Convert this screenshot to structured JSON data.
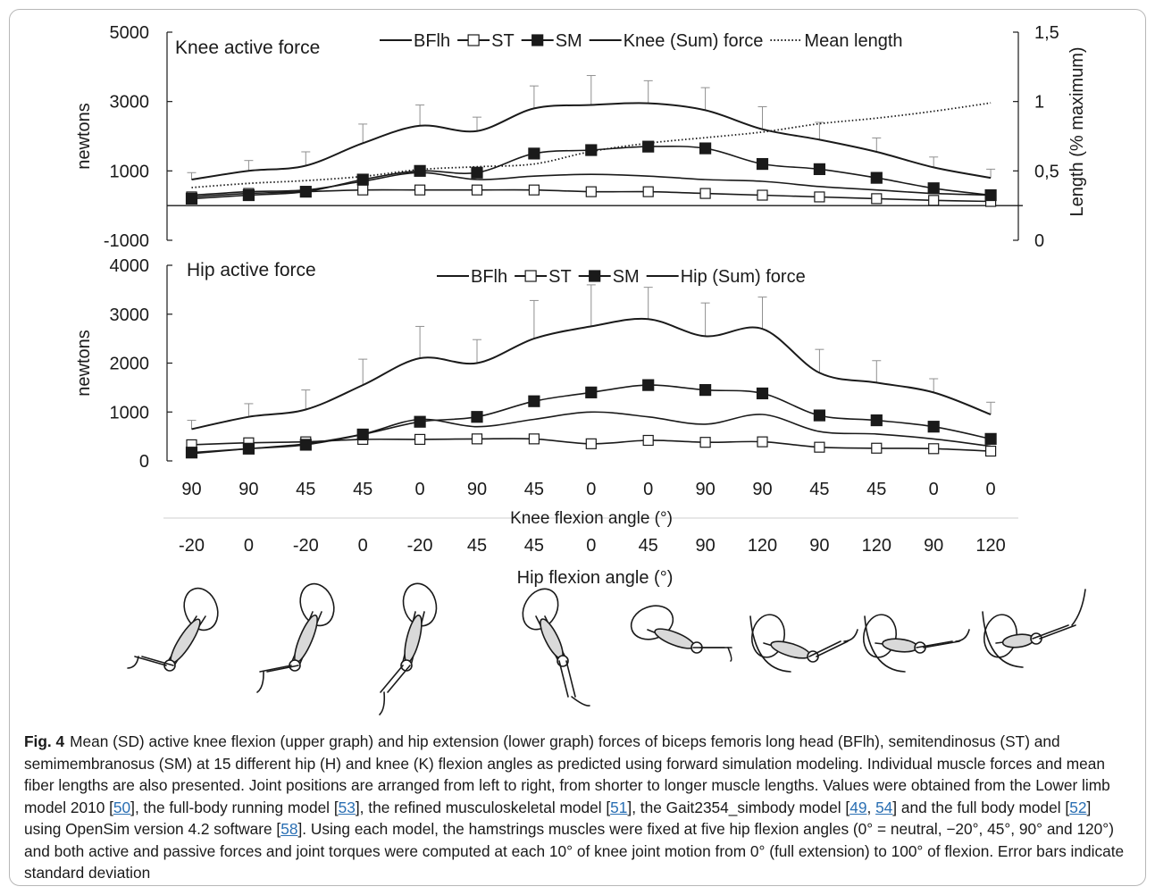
{
  "colors": {
    "line": "#1a1a1a",
    "errorbar": "#909090",
    "ref": "#2a6fb3",
    "frame": "#b7b7b7"
  },
  "x_axis": {
    "knee_angles": [
      "90",
      "90",
      "45",
      "45",
      "0",
      "90",
      "45",
      "0",
      "0",
      "90",
      "90",
      "45",
      "45",
      "0",
      "0"
    ],
    "hip_angles": [
      "-20",
      "0",
      "-20",
      "0",
      "-20",
      "45",
      "45",
      "0",
      "45",
      "90",
      "120",
      "90",
      "120",
      "90",
      "120"
    ],
    "knee_label": "Knee flexion angle (°)",
    "hip_label": "Hip flexion angle (°)"
  },
  "chart_data": [
    {
      "type": "line",
      "title": "Knee active force",
      "ylabel": "newtons",
      "ylim": [
        -1000,
        5000
      ],
      "yticks": [
        "5000",
        "3000",
        "1000",
        "-1000"
      ],
      "y2label": "Length (% maximum)",
      "y2lim": [
        0,
        1.5
      ],
      "y2ticks": [
        "1,5",
        "1",
        "0,5",
        "0"
      ],
      "legend": [
        "BFlh",
        "ST",
        "SM",
        "Knee (Sum) force",
        "Mean length"
      ],
      "series": [
        {
          "name": "BFlh",
          "marker": "none",
          "values": [
            300,
            400,
            450,
            700,
            950,
            750,
            850,
            900,
            850,
            750,
            700,
            550,
            450,
            350,
            300
          ]
        },
        {
          "name": "ST",
          "marker": "open-square",
          "values": [
            250,
            350,
            400,
            450,
            450,
            450,
            450,
            400,
            400,
            350,
            300,
            250,
            200,
            150,
            120
          ]
        },
        {
          "name": "SM",
          "marker": "filled-square",
          "values": [
            200,
            300,
            400,
            750,
            1000,
            950,
            1500,
            1600,
            1700,
            1650,
            1200,
            1050,
            800,
            500,
            300
          ]
        },
        {
          "name": "Knee (Sum) force",
          "marker": "none",
          "values": [
            750,
            1000,
            1150,
            1800,
            2300,
            2150,
            2800,
            2900,
            2950,
            2750,
            2200,
            1900,
            1550,
            1100,
            800
          ],
          "sd": [
            200,
            300,
            400,
            550,
            600,
            400,
            650,
            850,
            650,
            650,
            650,
            500,
            400,
            300,
            250
          ]
        },
        {
          "name": "Mean length",
          "marker": "none",
          "style": "dotted",
          "axis": "y2",
          "values": [
            0.38,
            0.41,
            0.43,
            0.46,
            0.51,
            0.53,
            0.55,
            0.64,
            0.7,
            0.74,
            0.78,
            0.84,
            0.88,
            0.93,
            0.99
          ]
        }
      ]
    },
    {
      "type": "line",
      "title": "Hip active force",
      "ylabel": "newtons",
      "ylim": [
        0,
        4000
      ],
      "yticks": [
        "4000",
        "3000",
        "2000",
        "1000",
        "0"
      ],
      "legend": [
        "BFlh",
        "ST",
        "SM",
        "Hip (Sum) force"
      ],
      "series": [
        {
          "name": "BFlh",
          "marker": "none",
          "values": [
            150,
            250,
            350,
            550,
            850,
            700,
            850,
            1000,
            900,
            750,
            950,
            600,
            550,
            450,
            300
          ]
        },
        {
          "name": "ST",
          "marker": "open-square",
          "values": [
            330,
            370,
            390,
            440,
            440,
            450,
            450,
            350,
            420,
            380,
            390,
            280,
            260,
            250,
            200
          ]
        },
        {
          "name": "SM",
          "marker": "filled-square",
          "values": [
            170,
            250,
            330,
            540,
            800,
            900,
            1220,
            1400,
            1550,
            1450,
            1380,
            930,
            830,
            700,
            450
          ]
        },
        {
          "name": "Hip (Sum) force",
          "marker": "none",
          "values": [
            650,
            900,
            1050,
            1550,
            2100,
            2000,
            2500,
            2750,
            2900,
            2550,
            2700,
            1800,
            1600,
            1400,
            950
          ],
          "sd": [
            180,
            270,
            400,
            530,
            650,
            480,
            780,
            850,
            650,
            680,
            650,
            480,
            450,
            280,
            250
          ]
        }
      ]
    }
  ],
  "caption": {
    "label": "Fig. 4",
    "parts": [
      {
        "t": "Mean (SD) active knee flexion (upper graph) and hip extension (lower graph) forces of biceps femoris long head (BFlh), semitendinosus (ST) and semimembranosus (SM) at 15 different hip (H) and knee (K) flexion angles as predicted using forward simulation modeling. Individual muscle forces and mean fiber lengths are also presented. Joint positions are arranged from left to right, from shorter to longer muscle lengths. Values were obtained from the Lower limb model 2010 ["
      },
      {
        "t": "50",
        "ref": true
      },
      {
        "t": "], the full-body running model ["
      },
      {
        "t": "53",
        "ref": true
      },
      {
        "t": "], the refined musculoskeletal model ["
      },
      {
        "t": "51",
        "ref": true
      },
      {
        "t": "], the Gait2354_simbody model ["
      },
      {
        "t": "49",
        "ref": true
      },
      {
        "t": ", "
      },
      {
        "t": "54",
        "ref": true
      },
      {
        "t": "] and the full body model ["
      },
      {
        "t": "52",
        "ref": true
      },
      {
        "t": "] using OpenSim version 4.2 software ["
      },
      {
        "t": "58",
        "ref": true
      },
      {
        "t": "]. Using each model, the hamstrings muscles were fixed at five hip flexion angles (0° = neutral, −20°, 45°, 90° and 120°) and both active and passive forces and joint torques were computed at each 10° of knee joint motion from 0° (full extension) to 100° of flexion. Error bars indicate standard deviation"
      }
    ]
  }
}
